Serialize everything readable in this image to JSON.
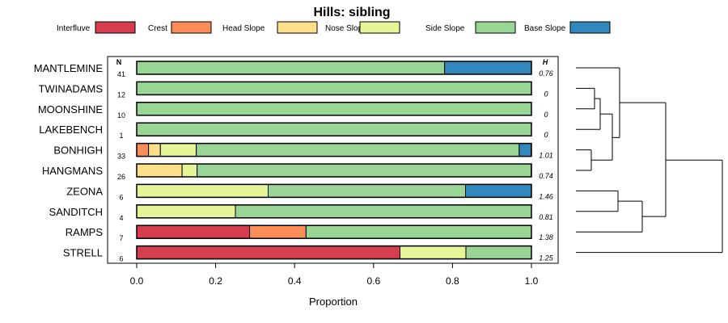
{
  "chart_data": {
    "type": "bar",
    "orientation": "horizontal",
    "stacked": true,
    "title": "Hills: sibling",
    "xlabel": "Proportion",
    "xlim": [
      0,
      1
    ],
    "xticks": [
      "0.0",
      "0.2",
      "0.4",
      "0.6",
      "0.8",
      "1.0"
    ],
    "n_header": "N",
    "h_header": "H",
    "legend": [
      {
        "name": "Interfluve",
        "color": "#d53e4f"
      },
      {
        "name": "Crest",
        "color": "#fc8d59"
      },
      {
        "name": "Head Slope",
        "color": "#fee08b"
      },
      {
        "name": "Nose Slope",
        "color": "#e6f598"
      },
      {
        "name": "Side Slope",
        "color": "#99d594"
      },
      {
        "name": "Base Slope",
        "color": "#3288bd"
      }
    ],
    "categories": [
      "MANTLEMINE",
      "TWINADAMS",
      "MOONSHINE",
      "LAKEBENCH",
      "BONHIGH",
      "HANGMANS",
      "ZEONA",
      "SANDITCH",
      "RAMPS",
      "STRELL"
    ],
    "n": [
      "41",
      "12",
      "10",
      "1",
      "33",
      "26",
      "6",
      "4",
      "7",
      "6"
    ],
    "h": [
      "0.76",
      "0",
      "0",
      "0",
      "1.01",
      "0.74",
      "1.46",
      "0.81",
      "1.38",
      "1.25"
    ],
    "series": [
      {
        "name": "Interfluve",
        "values": [
          0,
          0,
          0,
          0,
          0,
          0,
          0,
          0,
          0.286,
          0.667
        ]
      },
      {
        "name": "Crest",
        "values": [
          0,
          0,
          0,
          0,
          0.03,
          0,
          0,
          0,
          0.143,
          0
        ]
      },
      {
        "name": "Head Slope",
        "values": [
          0,
          0,
          0,
          0,
          0.03,
          0.115,
          0,
          0,
          0,
          0
        ]
      },
      {
        "name": "Nose Slope",
        "values": [
          0,
          0,
          0,
          0,
          0.091,
          0.038,
          0.333,
          0.25,
          0,
          0.167
        ]
      },
      {
        "name": "Side Slope",
        "values": [
          0.78,
          1,
          1,
          1,
          0.818,
          0.846,
          0.5,
          0.75,
          0.571,
          0.167
        ]
      },
      {
        "name": "Base Slope",
        "values": [
          0.22,
          0,
          0,
          0,
          0.03,
          0,
          0.167,
          0,
          0,
          0
        ]
      }
    ],
    "dendrogram": "hierarchical clustering of rows, drawn to the right of the plot"
  }
}
